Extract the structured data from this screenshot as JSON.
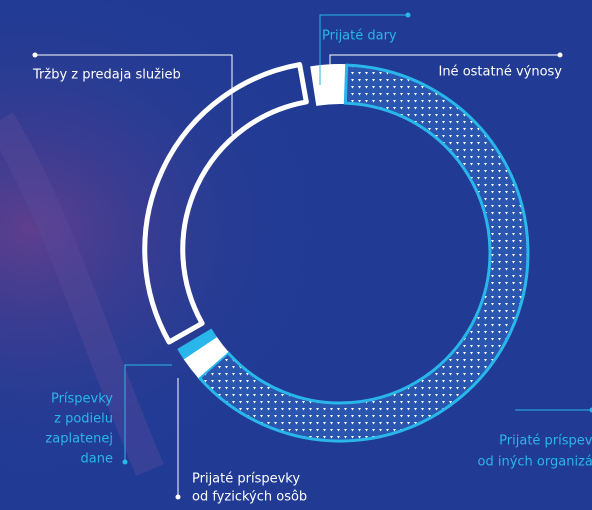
{
  "chart_data": {
    "type": "donut",
    "categories": [
      [
        "Iné ostatné výnosy"
      ],
      [
        "Prijaté príspevk",
        "od iných organizác"
      ],
      [
        "Prijaté príspevky",
        "od fyzických osôb"
      ],
      [
        "Príspevky",
        "z podielu",
        "zaplatenej",
        "dane"
      ],
      [
        "Tržby z predaja služieb"
      ],
      [
        "Prijaté dary"
      ]
    ],
    "values": [
      0.5,
      63,
      2,
      1,
      31,
      2.5
    ],
    "colors": [
      "#ffffff",
      "#29b6ea",
      "#ffffff",
      "#29b6ea",
      "#ffffff",
      "#ffffff"
    ],
    "fills": [
      "solid",
      "dotted",
      "solid",
      "solid",
      "outline",
      "solid"
    ],
    "label_colors": [
      "#ffffff",
      "#29b6ea",
      "#ffffff",
      "#29b6ea",
      "#ffffff",
      "#29b6ea"
    ]
  }
}
